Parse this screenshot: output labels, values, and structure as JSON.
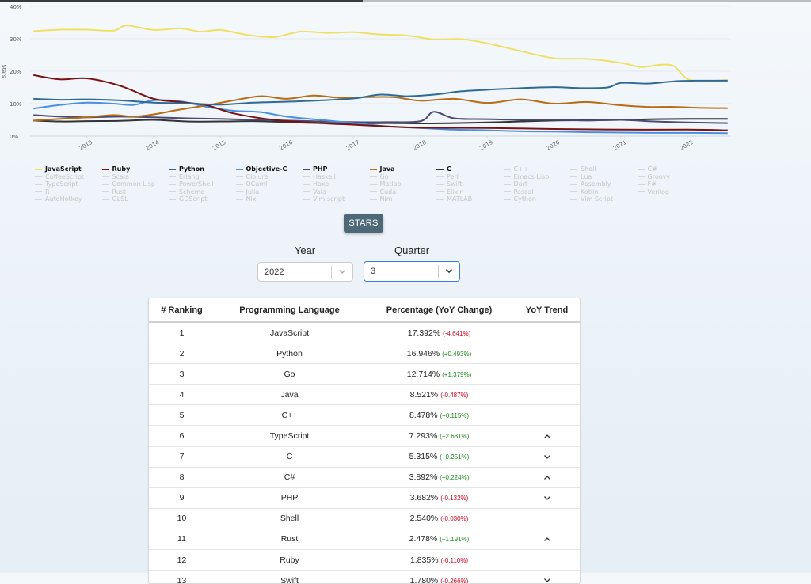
{
  "chart_data": {
    "type": "line",
    "ylabel": "Stars",
    "y_ticks": [
      "0%",
      "10%",
      "20%",
      "30%",
      "40%"
    ],
    "ylim": [
      0,
      40
    ],
    "x_ticks": [
      "2013",
      "2014",
      "2015",
      "2016",
      "2017",
      "2018",
      "2019",
      "2020",
      "2021",
      "2022"
    ],
    "xlim": [
      2012.15,
      2022.65
    ],
    "grid": true,
    "series": [
      {
        "name": "JavaScript",
        "color": "#efe064",
        "x": [
          2012.2,
          2012.6,
          2013.0,
          2013.4,
          2013.6,
          2014.0,
          2014.4,
          2014.7,
          2015.0,
          2015.4,
          2015.8,
          2016.2,
          2016.6,
          2017.0,
          2017.4,
          2017.8,
          2018.2,
          2018.6,
          2019.0,
          2019.5,
          2020.0,
          2020.5,
          2021.0,
          2021.3,
          2021.6,
          2021.8,
          2022.0,
          2022.3,
          2022.6
        ],
        "y": [
          32.3,
          32.8,
          32.8,
          32.5,
          34.1,
          32.7,
          33.2,
          32.2,
          32.7,
          31.2,
          30.5,
          32.2,
          31.8,
          32.0,
          31.3,
          31.0,
          29.8,
          29.9,
          28.6,
          26.2,
          24.0,
          23.8,
          22.6,
          21.3,
          22.0,
          21.5,
          17.6,
          17.0,
          17.3
        ]
      },
      {
        "name": "Ruby",
        "color": "#7a1212",
        "x": [
          2012.2,
          2012.6,
          2013.0,
          2013.5,
          2014.0,
          2014.4,
          2014.8,
          2015.2,
          2015.8,
          2016.5,
          2017.0,
          2017.5,
          2018.0,
          2019.0,
          2020.0,
          2021.0,
          2022.0,
          2022.6
        ],
        "y": [
          18.8,
          17.5,
          17.8,
          15.5,
          11.5,
          10.5,
          9.5,
          7.0,
          5.0,
          4.0,
          3.5,
          3.0,
          2.6,
          2.5,
          2.2,
          2.0,
          2.0,
          1.8
        ]
      },
      {
        "name": "Python",
        "color": "#2f6a97",
        "x": [
          2012.2,
          2012.6,
          2013.0,
          2013.5,
          2014.0,
          2014.5,
          2015.0,
          2015.5,
          2016.0,
          2016.5,
          2017.0,
          2017.4,
          2017.8,
          2018.2,
          2018.6,
          2019.0,
          2019.5,
          2020.0,
          2020.4,
          2020.8,
          2021.0,
          2021.4,
          2021.8,
          2022.2,
          2022.6
        ],
        "y": [
          11.5,
          11.2,
          11.3,
          11.0,
          10.3,
          10.1,
          9.7,
          10.3,
          10.6,
          11.0,
          11.6,
          12.8,
          12.3,
          12.8,
          13.8,
          14.3,
          14.8,
          15.1,
          14.8,
          15.0,
          16.4,
          16.2,
          16.9,
          17.1,
          17.1
        ]
      },
      {
        "name": "Objective-C",
        "color": "#4a90e2",
        "x": [
          2012.2,
          2012.6,
          2013.0,
          2013.4,
          2013.7,
          2014.0,
          2014.4,
          2014.8,
          2015.2,
          2015.6,
          2016.0,
          2016.5,
          2017.0,
          2017.5,
          2018.0,
          2018.5,
          2019.0,
          2019.5,
          2020.0,
          2020.5,
          2021.0,
          2021.5,
          2022.0,
          2022.6
        ],
        "y": [
          8.5,
          9.6,
          10.3,
          10.0,
          9.6,
          11.0,
          10.7,
          9.0,
          7.8,
          7.4,
          6.0,
          5.0,
          4.0,
          3.0,
          2.5,
          2.0,
          1.8,
          1.5,
          1.4,
          1.2,
          1.1,
          1.0,
          1.0,
          0.9
        ]
      },
      {
        "name": "PHP",
        "color": "#4a4a72",
        "x": [
          2012.2,
          2012.6,
          2013.0,
          2013.5,
          2014.0,
          2014.5,
          2015.0,
          2015.5,
          2016.0,
          2016.5,
          2017.0,
          2017.5,
          2018.0,
          2018.2,
          2018.5,
          2019.0,
          2019.5,
          2020.0,
          2020.5,
          2021.0,
          2021.5,
          2022.0,
          2022.6
        ],
        "y": [
          6.5,
          6.0,
          5.8,
          6.0,
          5.8,
          5.5,
          5.3,
          5.0,
          4.8,
          4.5,
          4.3,
          4.3,
          4.6,
          7.5,
          5.5,
          5.2,
          5.0,
          5.0,
          4.8,
          5.0,
          4.5,
          4.2,
          4.0
        ]
      },
      {
        "name": "Java",
        "color": "#b86c14",
        "x": [
          2012.2,
          2012.6,
          2013.0,
          2013.4,
          2013.7,
          2014.0,
          2014.4,
          2014.8,
          2015.2,
          2015.6,
          2016.0,
          2016.4,
          2016.8,
          2017.2,
          2017.6,
          2018.0,
          2018.5,
          2019.0,
          2019.5,
          2020.0,
          2020.5,
          2021.0,
          2021.4,
          2021.8,
          2022.2,
          2022.6
        ],
        "y": [
          4.8,
          5.3,
          5.8,
          6.5,
          6.0,
          6.7,
          8.2,
          9.5,
          11.0,
          12.3,
          11.5,
          12.5,
          11.8,
          12.0,
          12.0,
          10.9,
          11.5,
          10.2,
          11.3,
          10.0,
          10.5,
          9.5,
          9.0,
          9.0,
          8.7,
          8.6
        ]
      },
      {
        "name": "C",
        "color": "#333333",
        "x": [
          2012.2,
          2012.6,
          2013.0,
          2013.5,
          2014.0,
          2014.5,
          2015.0,
          2015.5,
          2016.0,
          2016.5,
          2017.0,
          2017.5,
          2018.0,
          2018.5,
          2019.0,
          2019.5,
          2020.0,
          2020.5,
          2021.0,
          2021.5,
          2022.0,
          2022.6
        ],
        "y": [
          4.8,
          4.5,
          4.6,
          4.7,
          5.0,
          4.5,
          4.5,
          4.6,
          4.3,
          4.0,
          3.9,
          4.0,
          3.9,
          4.0,
          4.2,
          4.5,
          4.8,
          4.9,
          5.0,
          5.2,
          5.3,
          5.3
        ]
      }
    ]
  },
  "legend": {
    "rows": [
      [
        {
          "label": "JavaScript",
          "active": true,
          "color": "#efe064"
        },
        {
          "label": "Ruby",
          "active": true,
          "color": "#7a1212"
        },
        {
          "label": "Python",
          "active": true,
          "color": "#2f6a97"
        },
        {
          "label": "Objective-C",
          "active": true,
          "color": "#4a90e2"
        },
        {
          "label": "PHP",
          "active": true,
          "color": "#4a4a72"
        },
        {
          "label": "Java",
          "active": true,
          "color": "#b86c14"
        },
        {
          "label": "C",
          "active": true,
          "color": "#333333"
        },
        {
          "label": "C++",
          "active": false
        },
        {
          "label": "Shell",
          "active": false
        },
        {
          "label": "C#",
          "active": false
        }
      ],
      [
        {
          "label": "CoffeeScript",
          "active": false
        },
        {
          "label": "Scala",
          "active": false
        },
        {
          "label": "Erlang",
          "active": false
        },
        {
          "label": "Clojure",
          "active": false
        },
        {
          "label": "Haskell",
          "active": false
        },
        {
          "label": "Go",
          "active": false
        },
        {
          "label": "Perl",
          "active": false
        },
        {
          "label": "Emacs Lisp",
          "active": false
        },
        {
          "label": "Lua",
          "active": false
        },
        {
          "label": "Groovy",
          "active": false
        }
      ],
      [
        {
          "label": "TypeScript",
          "active": false
        },
        {
          "label": "Common Lisp",
          "active": false
        },
        {
          "label": "PowerShell",
          "active": false
        },
        {
          "label": "OCaml",
          "active": false
        },
        {
          "label": "Haxe",
          "active": false
        },
        {
          "label": "Matlab",
          "active": false
        },
        {
          "label": "Swift",
          "active": false
        },
        {
          "label": "Dart",
          "active": false
        },
        {
          "label": "Assembly",
          "active": false
        },
        {
          "label": "F#",
          "active": false
        }
      ],
      [
        {
          "label": "R",
          "active": false
        },
        {
          "label": "Rust",
          "active": false
        },
        {
          "label": "Scheme",
          "active": false
        },
        {
          "label": "Julia",
          "active": false
        },
        {
          "label": "Vala",
          "active": false
        },
        {
          "label": "Cuda",
          "active": false
        },
        {
          "label": "Elixir",
          "active": false
        },
        {
          "label": "Pascal",
          "active": false
        },
        {
          "label": "Kotlin",
          "active": false
        },
        {
          "label": "Verilog",
          "active": false
        }
      ],
      [
        {
          "label": "AutoHotkey",
          "active": false
        },
        {
          "label": "GLSL",
          "active": false
        },
        {
          "label": "GDScript",
          "active": false
        },
        {
          "label": "Nix",
          "active": false
        },
        {
          "label": "Vim script",
          "active": false
        },
        {
          "label": "Nim",
          "active": false
        },
        {
          "label": "MATLAB",
          "active": false
        },
        {
          "label": "Cython",
          "active": false
        },
        {
          "label": "Vim Script",
          "active": false
        }
      ]
    ]
  },
  "controls": {
    "metric_button": "STARS",
    "year_label": "Year",
    "year_value": "2022",
    "quarter_label": "Quarter",
    "quarter_value": "3"
  },
  "table": {
    "headers": [
      "# Ranking",
      "Programming Language",
      "Percentage (YoY Change)",
      "YoY Trend"
    ],
    "rows": [
      {
        "rank": "1",
        "lang": "JavaScript",
        "pct": "17.392%",
        "chg": "(-4.641%)",
        "dir": "neg",
        "trend": ""
      },
      {
        "rank": "2",
        "lang": "Python",
        "pct": "16.946%",
        "chg": "(+0.493%)",
        "dir": "pos",
        "trend": ""
      },
      {
        "rank": "3",
        "lang": "Go",
        "pct": "12.714%",
        "chg": "(+1.379%)",
        "dir": "pos",
        "trend": ""
      },
      {
        "rank": "4",
        "lang": "Java",
        "pct": "8.521%",
        "chg": "(-0.487%)",
        "dir": "neg",
        "trend": ""
      },
      {
        "rank": "5",
        "lang": "C++",
        "pct": "8.478%",
        "chg": "(+0.115%)",
        "dir": "pos",
        "trend": ""
      },
      {
        "rank": "6",
        "lang": "TypeScript",
        "pct": "7.293%",
        "chg": "(+2.681%)",
        "dir": "pos",
        "trend": "up"
      },
      {
        "rank": "7",
        "lang": "C",
        "pct": "5.315%",
        "chg": "(+0.251%)",
        "dir": "pos",
        "trend": "down"
      },
      {
        "rank": "8",
        "lang": "C#",
        "pct": "3.892%",
        "chg": "(+0.224%)",
        "dir": "pos",
        "trend": "up"
      },
      {
        "rank": "9",
        "lang": "PHP",
        "pct": "3.682%",
        "chg": "(-0.132%)",
        "dir": "neg",
        "trend": "down"
      },
      {
        "rank": "10",
        "lang": "Shell",
        "pct": "2.540%",
        "chg": "(-0.030%)",
        "dir": "neg",
        "trend": ""
      },
      {
        "rank": "11",
        "lang": "Rust",
        "pct": "2.478%",
        "chg": "(+1.191%)",
        "dir": "pos",
        "trend": "up"
      },
      {
        "rank": "12",
        "lang": "Ruby",
        "pct": "1.835%",
        "chg": "(-0.110%)",
        "dir": "neg",
        "trend": ""
      },
      {
        "rank": "13",
        "lang": "Swift",
        "pct": "1.780%",
        "chg": "(-0.266%)",
        "dir": "neg",
        "trend": "down"
      }
    ]
  }
}
